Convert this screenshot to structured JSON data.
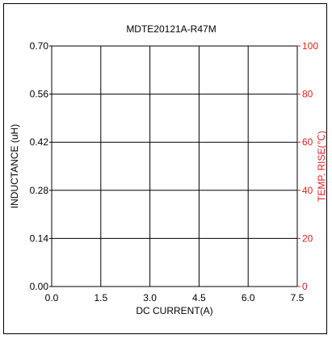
{
  "chart_data": {
    "type": "line",
    "title": "MDTE20121A-R47M",
    "xlabel": "DC CURRENT(A)",
    "ylabel": "INDUCTANCE (uH)",
    "y2label": "TEMP. RISE(℃)",
    "xlim": [
      0,
      7.5
    ],
    "ylim": [
      0,
      0.7
    ],
    "y2lim": [
      0,
      100
    ],
    "x_ticks": [
      "0.0",
      "1.5",
      "3.0",
      "4.5",
      "6.0",
      "7.5"
    ],
    "y_ticks": [
      "0.00",
      "0.14",
      "0.28",
      "0.42",
      "0.56",
      "0.70"
    ],
    "y2_ticks": [
      "0",
      "20",
      "40",
      "60",
      "80",
      "100"
    ],
    "grid": true,
    "series": [],
    "colors": {
      "primary_axis": "#000000",
      "secondary_axis": "#e0201b"
    }
  }
}
